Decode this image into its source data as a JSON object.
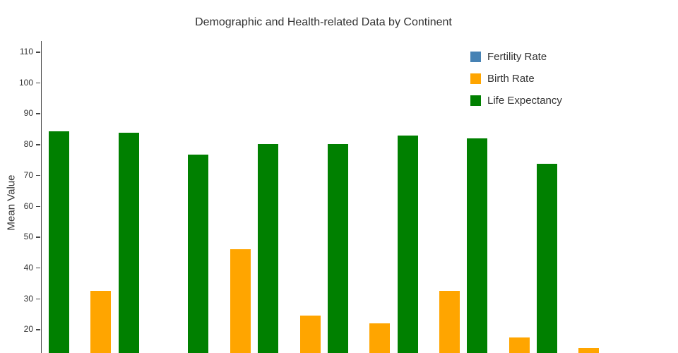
{
  "chart": {
    "background": "#ffffff"
  },
  "chart_data": {
    "type": "bar",
    "title": "Demographic and Health-related Data by Continent",
    "xlabel": "",
    "ylabel": "Mean Value",
    "legend_position": "top-right-inside",
    "grid": false,
    "yticks": [
      110,
      100,
      90,
      80,
      70,
      60,
      50,
      40,
      30,
      20
    ],
    "crop_note": "chart is cropped at the bottom edge of the screenshot; the x-axis, its category labels, and bar values below ~12 are not visible",
    "categories": [
      "",
      "",
      "",
      "",
      "",
      "",
      "",
      ""
    ],
    "categories_note": "8 category groups; continent labels cut off below visible area",
    "bar_slot_order_within_group": [
      "Life Expectancy",
      "Fertility Rate",
      "Birth Rate"
    ],
    "series": [
      {
        "name": "Fertility Rate",
        "color": "#4682b4",
        "values": [
          null,
          null,
          null,
          null,
          null,
          null,
          null,
          null
        ],
        "note": "fertility-rate bars fall entirely below the visible crop; numeric values not readable"
      },
      {
        "name": "Birth Rate",
        "color": "#ffa500",
        "values": [
          32.4,
          null,
          46.0,
          24.5,
          21.9,
          32.4,
          17.4,
          13.9
        ]
      },
      {
        "name": "Life Expectancy",
        "color": "#008000",
        "values": [
          84.2,
          83.6,
          76.7,
          80.1,
          80.0,
          82.7,
          81.9,
          73.6
        ]
      }
    ]
  }
}
